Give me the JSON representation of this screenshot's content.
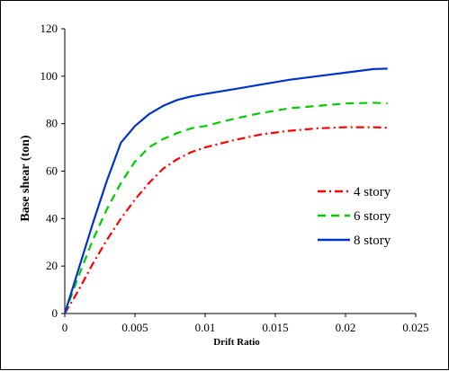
{
  "chart_data": {
    "type": "line",
    "title": "",
    "xlabel": "Drift Ratio",
    "ylabel": "Base shear (ton)",
    "xlim": [
      0,
      0.025
    ],
    "ylim": [
      0,
      120
    ],
    "xticks": [
      "0",
      "0.005",
      "0.01",
      "0.015",
      "0.02",
      "0.025"
    ],
    "xtick_values": [
      0,
      0.005,
      0.01,
      0.015,
      0.02,
      0.025
    ],
    "yticks": [
      "0",
      "20",
      "40",
      "60",
      "80",
      "100",
      "120"
    ],
    "ytick_values": [
      0,
      20,
      40,
      60,
      80,
      100,
      120
    ],
    "grid": false,
    "legend_position": "center-right",
    "series": [
      {
        "name": "4 story",
        "color": "#ff0000",
        "dash": "dash-dot",
        "points": [
          [
            0,
            0
          ],
          [
            0.001,
            10
          ],
          [
            0.002,
            21
          ],
          [
            0.003,
            31
          ],
          [
            0.004,
            40
          ],
          [
            0.005,
            48
          ],
          [
            0.006,
            55
          ],
          [
            0.007,
            61
          ],
          [
            0.008,
            65
          ],
          [
            0.009,
            68
          ],
          [
            0.01,
            70
          ],
          [
            0.012,
            73
          ],
          [
            0.014,
            75.5
          ],
          [
            0.016,
            77
          ],
          [
            0.018,
            78
          ],
          [
            0.02,
            78.5
          ],
          [
            0.022,
            78.5
          ],
          [
            0.023,
            78.3
          ]
        ]
      },
      {
        "name": "6 story",
        "color": "#00cc00",
        "dash": "dash",
        "points": [
          [
            0,
            0
          ],
          [
            0.001,
            16
          ],
          [
            0.002,
            31
          ],
          [
            0.003,
            44
          ],
          [
            0.004,
            55
          ],
          [
            0.005,
            64
          ],
          [
            0.006,
            70
          ],
          [
            0.007,
            73.5
          ],
          [
            0.008,
            76
          ],
          [
            0.009,
            78
          ],
          [
            0.01,
            79
          ],
          [
            0.012,
            82
          ],
          [
            0.014,
            84.5
          ],
          [
            0.016,
            86.5
          ],
          [
            0.018,
            87.5
          ],
          [
            0.02,
            88.5
          ],
          [
            0.022,
            88.8
          ],
          [
            0.023,
            88.5
          ]
        ]
      },
      {
        "name": "8 story",
        "color": "#0033cc",
        "dash": "solid",
        "points": [
          [
            0,
            0
          ],
          [
            0.001,
            19
          ],
          [
            0.002,
            38
          ],
          [
            0.003,
            56
          ],
          [
            0.004,
            72
          ],
          [
            0.005,
            79
          ],
          [
            0.006,
            84
          ],
          [
            0.007,
            87.5
          ],
          [
            0.008,
            90
          ],
          [
            0.009,
            91.5
          ],
          [
            0.01,
            92.5
          ],
          [
            0.012,
            94.5
          ],
          [
            0.014,
            96.5
          ],
          [
            0.016,
            98.5
          ],
          [
            0.018,
            100
          ],
          [
            0.02,
            101.5
          ],
          [
            0.022,
            103
          ],
          [
            0.023,
            103.2
          ]
        ]
      }
    ]
  }
}
